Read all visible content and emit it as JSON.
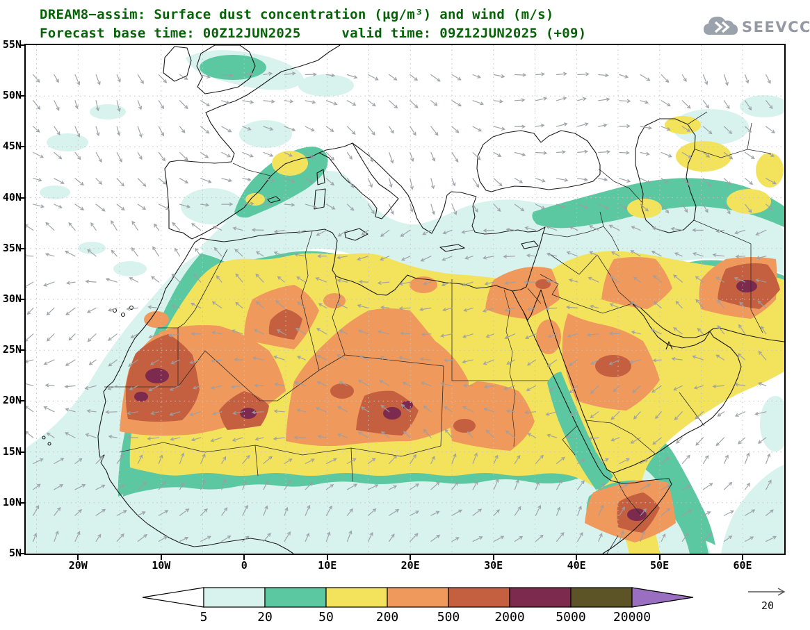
{
  "header": {
    "title_line1": "DREAM8−assim: Surface dust concentration (µg/m³) and wind (m/s)",
    "title_line2": "Forecast base time: 00Z12JUN2025     valid time: 09Z12JUN2025 (+09)",
    "title_color": "#066206"
  },
  "logo": {
    "text": "SEEVCCC",
    "color": "#939aa3"
  },
  "axes": {
    "lat_ticks": [
      "55N",
      "50N",
      "45N",
      "40N",
      "35N",
      "30N",
      "25N",
      "20N",
      "15N",
      "10N",
      "5N"
    ],
    "lon_ticks": [
      "20W",
      "10W",
      "0",
      "10E",
      "20E",
      "30E",
      "40E",
      "50E",
      "60E"
    ]
  },
  "colorbar": {
    "levels": [
      "5",
      "20",
      "50",
      "200",
      "500",
      "2000",
      "5000",
      "20000"
    ],
    "colors": [
      "#ffffff",
      "#d8f3ee",
      "#5bc8a2",
      "#f3e35c",
      "#f0995c",
      "#c4603f",
      "#7c2b4e",
      "#5c5426",
      "#9a6fc2"
    ],
    "units": "µg/m³"
  },
  "wind_reference": {
    "label": "20",
    "units": "m/s"
  },
  "chart_data": {
    "type": "heatmap",
    "title": "DREAM8−assim: Surface dust concentration (µg/m³) and wind (m/s)",
    "model": "DREAM8-assim",
    "variable": "Surface dust concentration",
    "units": "µg/m³",
    "wind_units": "m/s",
    "forecast_base_time": "00Z12JUN2025",
    "valid_time": "09Z12JUN2025",
    "forecast_hour": "+09",
    "source_logo": "SEEVCCC",
    "lon_range_deg": [
      -26.5,
      65
    ],
    "lat_range_deg": [
      5,
      55
    ],
    "xticks": [
      "20W",
      "10W",
      "0",
      "10E",
      "20E",
      "30E",
      "40E",
      "50E",
      "60E"
    ],
    "yticks": [
      "5N",
      "10N",
      "15N",
      "20N",
      "25N",
      "30N",
      "35N",
      "40N",
      "45N",
      "50N",
      "55N"
    ],
    "gridline_spacing_deg": 5,
    "contour_levels_ug_m3": [
      5,
      20,
      50,
      200,
      500,
      2000,
      5000,
      20000
    ],
    "level_colors": [
      "#ffffff",
      "#d8f3ee",
      "#5bc8a2",
      "#f3e35c",
      "#f0995c",
      "#c4603f",
      "#7c2b4e",
      "#5c5426",
      "#9a6fc2"
    ],
    "wind_reference_m_s": 20,
    "wind_vector_color": "#9b9fa4",
    "legend_position": "bottom",
    "observed_pattern": [
      "50-200 µg/m³ (yellow) covers most of the Sahara and the Arabian Peninsula",
      "200-500 µg/m³ (orange) over Mauritania/Western Sahara, central Algeria, Niger-Chad-Libya, Sudan, NE Egypt-Levant, central Arabia, Iraq, NE Iran and Somalia",
      "500-2000 µg/m³ (brick) cores over Mauritania, Mali, Chad, NE Iran and Somalia with small 2000-5000 µg/m³ maroon spots",
      "5-50 µg/m³ (cyan/green) fringe over the Atlantic off West Africa, Mediterranean, southern Europe, Turkey-Caspian belt, Sahel and Horn of Africa",
      "Winds: NE trades over the Sahara, SW monsoon flow toward the Arabian Sea, westerlies over Europe"
    ]
  }
}
